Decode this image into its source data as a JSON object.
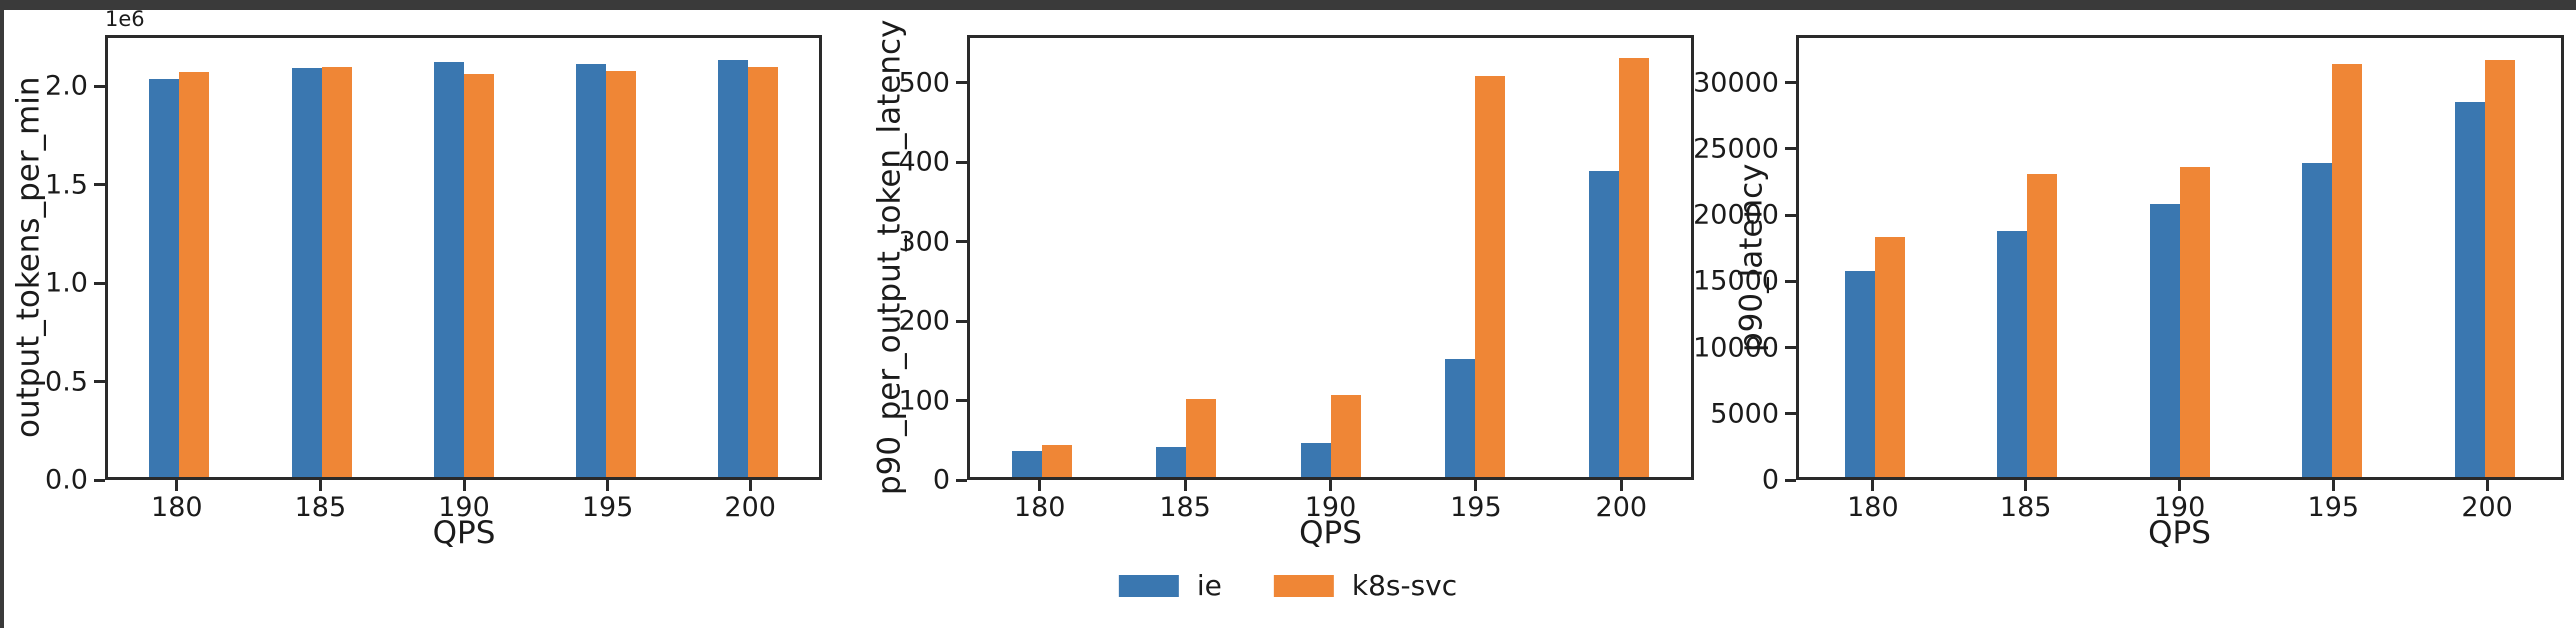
{
  "figure": {
    "background": "#ffffff",
    "chrome_color": "#3a3a3a",
    "text_color": "#1b1b1b",
    "spine_color": "#2a2a2a"
  },
  "legend": {
    "position": "bottom-center",
    "items": [
      {
        "label": "ie",
        "color": "#3a77b0"
      },
      {
        "label": "k8s-svc",
        "color": "#ef8636"
      }
    ]
  },
  "chart_data": [
    {
      "type": "bar",
      "title": "",
      "xlabel": "QPS",
      "ylabel": "output_tokens_per_min",
      "offset_text": "1e6",
      "grid": false,
      "categories": [
        "180",
        "185",
        "190",
        "195",
        "200"
      ],
      "series": [
        {
          "name": "ie",
          "color": "#3a77b0",
          "values": [
            2050000,
            2105000,
            2135000,
            2127000,
            2147000
          ]
        },
        {
          "name": "k8s-svc",
          "color": "#ef8636",
          "values": [
            2085000,
            2112000,
            2076000,
            2088000,
            2110000
          ]
        }
      ],
      "ylim": [
        0,
        2260000
      ],
      "yticks": [
        0,
        500000,
        1000000,
        1500000,
        2000000
      ],
      "ytick_labels": [
        "0.0",
        "0.5",
        "1.0",
        "1.5",
        "2.0"
      ]
    },
    {
      "type": "bar",
      "title": "",
      "xlabel": "QPS",
      "ylabel": "p90_per_output_token_latency",
      "offset_text": "",
      "grid": false,
      "categories": [
        "180",
        "185",
        "190",
        "195",
        "200"
      ],
      "series": [
        {
          "name": "ie",
          "color": "#3a77b0",
          "values": [
            33,
            38,
            44,
            150,
            390
          ]
        },
        {
          "name": "k8s-svc",
          "color": "#ef8636",
          "values": [
            41,
            100,
            104,
            512,
            535
          ]
        }
      ],
      "ylim": [
        0,
        560
      ],
      "yticks": [
        0,
        100,
        200,
        300,
        400,
        500
      ],
      "ytick_labels": [
        "0",
        "100",
        "200",
        "300",
        "400",
        "500"
      ]
    },
    {
      "type": "bar",
      "title": "",
      "xlabel": "QPS",
      "ylabel": "p90_latency",
      "offset_text": "",
      "grid": false,
      "categories": [
        "180",
        "185",
        "190",
        "195",
        "200"
      ],
      "series": [
        {
          "name": "ie",
          "color": "#3a77b0",
          "values": [
            15750,
            18850,
            20900,
            24000,
            28740
          ]
        },
        {
          "name": "k8s-svc",
          "color": "#ef8636",
          "values": [
            18400,
            23200,
            23750,
            31630,
            31880
          ]
        }
      ],
      "ylim": [
        0,
        33600
      ],
      "yticks": [
        0,
        5000,
        10000,
        15000,
        20000,
        25000,
        30000
      ],
      "ytick_labels": [
        "0",
        "5000",
        "10000",
        "15000",
        "20000",
        "25000",
        "30000"
      ]
    }
  ]
}
